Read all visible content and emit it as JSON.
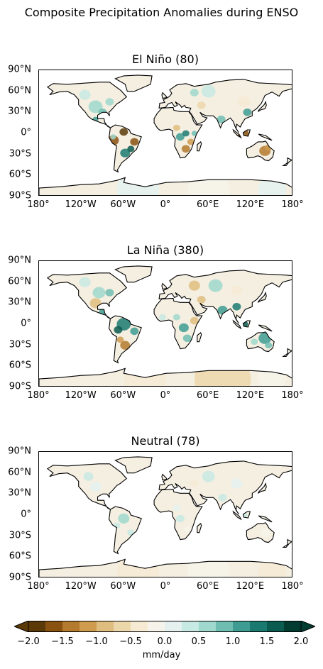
{
  "title": "Composite Precipitation Anomalies during ENSO",
  "panels": [
    {
      "title": "El Niño (80)"
    },
    {
      "title": "La Niña (380)"
    },
    {
      "title": "Neutral (78)"
    }
  ],
  "axes": {
    "lat_ticks": [
      "90°N",
      "60°N",
      "30°N",
      "0°",
      "30°S",
      "60°S",
      "90°S"
    ],
    "lon_ticks": [
      "180°",
      "120°W",
      "60°W",
      "0°",
      "60°E",
      "120°E",
      "180°"
    ]
  },
  "colorbar": {
    "label": "mm/day",
    "ticks": [
      "−2.0",
      "−1.5",
      "−1.0",
      "−0.5",
      "0.0",
      "0.5",
      "1.0",
      "1.5",
      "2.0"
    ],
    "colors": [
      "#5b3a08",
      "#8a5210",
      "#b47a2e",
      "#cf9b4f",
      "#dfbd7f",
      "#ecd7aa",
      "#f6ead3",
      "#f6f3ea",
      "#e4f1ee",
      "#c7e9e3",
      "#9fd8cc",
      "#6ebdb0",
      "#3e9c92",
      "#1b7a70",
      "#0b5b50",
      "#003c30"
    ]
  },
  "chart_data": {
    "type": "map",
    "title": "Composite Precipitation Anomalies during ENSO",
    "lon_range": [
      -180,
      180
    ],
    "lat_range": [
      -90,
      90
    ],
    "colorbar_range": [
      -2.0,
      2.0
    ],
    "colorbar_label": "mm/day"
  }
}
